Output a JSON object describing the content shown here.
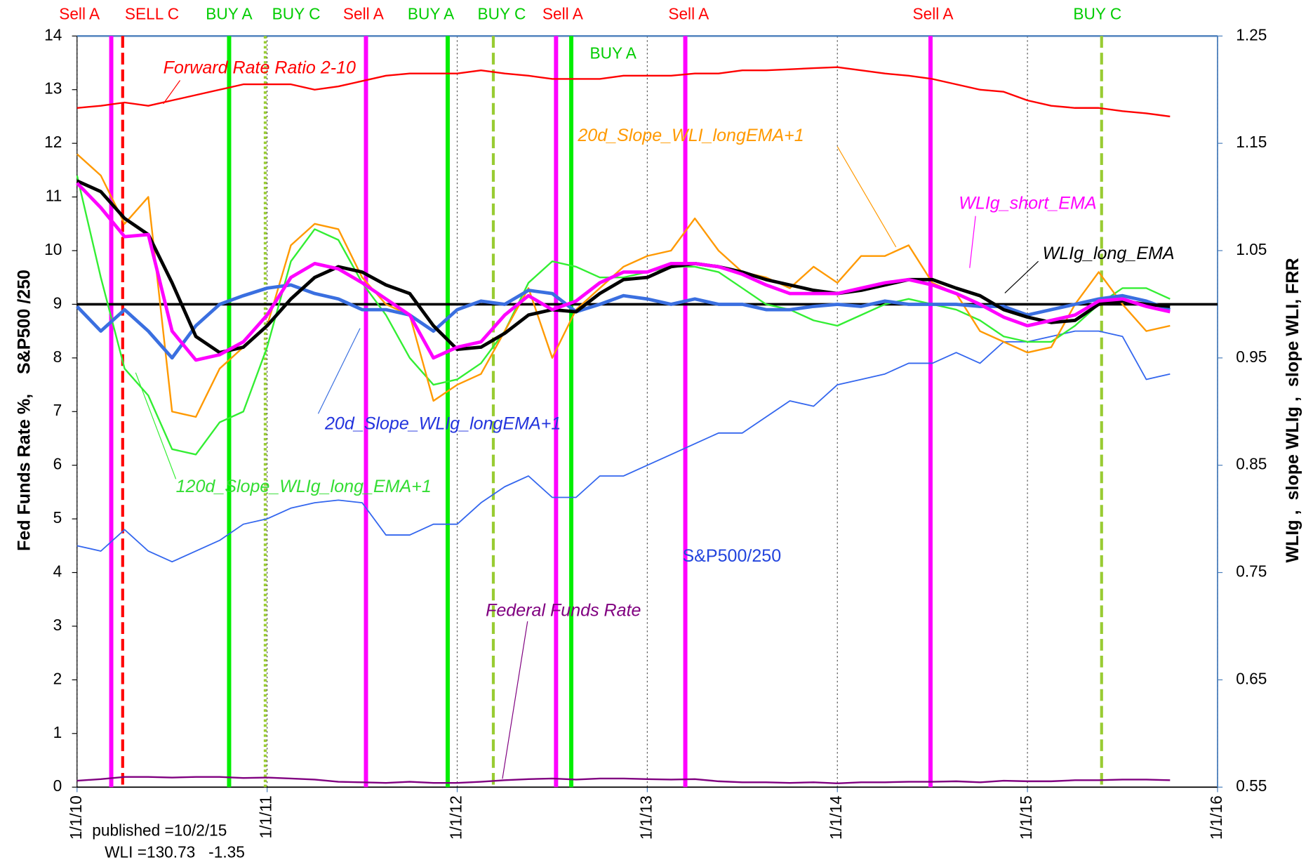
{
  "chart_data": {
    "type": "line",
    "x": [
      2010,
      2010.125,
      2010.25,
      2010.375,
      2010.5,
      2010.625,
      2010.75,
      2010.875,
      2011,
      2011.125,
      2011.25,
      2011.375,
      2011.5,
      2011.625,
      2011.75,
      2011.875,
      2012,
      2012.125,
      2012.25,
      2012.375,
      2012.5,
      2012.625,
      2012.75,
      2012.875,
      2013,
      2013.125,
      2013.25,
      2013.375,
      2013.5,
      2013.625,
      2013.75,
      2013.875,
      2014,
      2014.125,
      2014.25,
      2014.375,
      2014.5,
      2014.625,
      2014.75,
      2014.875,
      2015,
      2015.125,
      2015.25,
      2015.375,
      2015.5,
      2015.625,
      2015.75
    ],
    "xlim": [
      2010,
      2016
    ],
    "xticks": [
      {
        "value": 2010,
        "label": "1/1/10"
      },
      {
        "value": 2011,
        "label": "1/1/11"
      },
      {
        "value": 2012,
        "label": "1/1/12"
      },
      {
        "value": 2013,
        "label": "1/1/13"
      },
      {
        "value": 2014,
        "label": "1/1/14"
      },
      {
        "value": 2015,
        "label": "1/1/15"
      },
      {
        "value": 2016,
        "label": "1/1/16"
      }
    ],
    "ylim": [
      0,
      14
    ],
    "yticks": [
      0,
      1,
      2,
      3,
      4,
      5,
      6,
      7,
      8,
      9,
      10,
      11,
      12,
      13,
      14
    ],
    "y2lim": [
      0.55,
      1.25
    ],
    "y2ticks": [
      0.55,
      0.65,
      0.75,
      0.85,
      0.95,
      1.05,
      1.15,
      1.25
    ],
    "ylabel": "Fed Funds Rate %,    S&P500 /250",
    "y2label": "WLIg ,  slope WLIg ,  slope WLI, FRR",
    "grid": "x",
    "reference_lines": [
      {
        "value": 1,
        "axis": "y2",
        "color": "#000000"
      }
    ],
    "series": [
      {
        "name": "S&P500/250",
        "color": "#3366ee",
        "values": [
          4.5,
          4.4,
          4.8,
          4.4,
          4.2,
          4.4,
          4.6,
          4.9,
          5.0,
          5.2,
          5.3,
          5.35,
          5.3,
          4.7,
          4.7,
          4.9,
          4.9,
          5.3,
          5.6,
          5.8,
          5.4,
          5.4,
          5.8,
          5.8,
          6.0,
          6.2,
          6.4,
          6.6,
          6.6,
          6.9,
          7.2,
          7.1,
          7.5,
          7.6,
          7.7,
          7.9,
          7.9,
          8.1,
          7.9,
          8.3,
          8.3,
          8.4,
          8.5,
          8.5,
          8.4,
          7.6,
          7.7
        ]
      },
      {
        "name": "Federal Funds Rate",
        "color": "#800080",
        "values": [
          0.12,
          0.15,
          0.19,
          0.19,
          0.18,
          0.19,
          0.19,
          0.17,
          0.18,
          0.16,
          0.14,
          0.1,
          0.09,
          0.08,
          0.1,
          0.08,
          0.08,
          0.1,
          0.13,
          0.15,
          0.16,
          0.14,
          0.16,
          0.16,
          0.15,
          0.14,
          0.15,
          0.11,
          0.09,
          0.09,
          0.08,
          0.09,
          0.07,
          0.09,
          0.09,
          0.1,
          0.1,
          0.11,
          0.09,
          0.12,
          0.11,
          0.11,
          0.13,
          0.13,
          0.14,
          0.14,
          0.13
        ]
      },
      {
        "name": "Forward Rate Ratio 2-10",
        "color": "#ff0000",
        "axis": "y2",
        "values": [
          1.183,
          1.185,
          1.188,
          1.185,
          1.19,
          1.195,
          1.2,
          1.205,
          1.205,
          1.205,
          1.2,
          1.203,
          1.208,
          1.213,
          1.215,
          1.215,
          1.215,
          1.218,
          1.215,
          1.213,
          1.21,
          1.21,
          1.21,
          1.213,
          1.213,
          1.213,
          1.215,
          1.215,
          1.218,
          1.218,
          1.219,
          1.22,
          1.221,
          1.218,
          1.215,
          1.213,
          1.21,
          1.205,
          1.2,
          1.198,
          1.19,
          1.185,
          1.183,
          1.183,
          1.18,
          1.178,
          1.175
        ]
      },
      {
        "name": "120d_Slope_WLIg_long_EMA+1",
        "color": "#33ee33",
        "axis": "y2",
        "values": [
          1.12,
          1.025,
          0.94,
          0.915,
          0.865,
          0.86,
          0.89,
          0.9,
          0.96,
          1.04,
          1.07,
          1.06,
          1.02,
          0.99,
          0.95,
          0.925,
          0.93,
          0.945,
          0.975,
          1.02,
          1.04,
          1.035,
          1.025,
          1.025,
          1.03,
          1.035,
          1.035,
          1.03,
          1.015,
          1.0,
          0.995,
          0.985,
          0.98,
          0.99,
          1.0,
          1.005,
          1.0,
          0.995,
          0.985,
          0.97,
          0.965,
          0.965,
          0.98,
          1.0,
          1.015,
          1.015,
          1.005
        ]
      },
      {
        "name": "20d_Slope_WLI_longEMA+1",
        "color": "#ff9900",
        "axis": "y2",
        "values": [
          1.14,
          1.12,
          1.075,
          1.1,
          0.9,
          0.895,
          0.94,
          0.96,
          0.98,
          1.055,
          1.075,
          1.07,
          1.025,
          1.0,
          0.99,
          0.91,
          0.925,
          0.935,
          0.975,
          1.015,
          0.95,
          0.995,
          1.015,
          1.035,
          1.045,
          1.05,
          1.08,
          1.05,
          1.03,
          1.025,
          1.015,
          1.035,
          1.02,
          1.045,
          1.045,
          1.055,
          1.02,
          1.01,
          0.975,
          0.965,
          0.955,
          0.96,
          1.0,
          1.03,
          1.0,
          0.975,
          0.98
        ]
      },
      {
        "name": "20d_Slope_WLIg_longEMA+1",
        "color": "#3a6fe0",
        "axis": "y2",
        "values": [
          0.998,
          0.975,
          0.995,
          0.975,
          0.95,
          0.98,
          1.0,
          1.008,
          1.015,
          1.018,
          1.01,
          1.005,
          0.995,
          0.995,
          0.99,
          0.975,
          0.995,
          1.003,
          1.0,
          1.013,
          1.01,
          0.993,
          1.0,
          1.008,
          1.005,
          1.0,
          1.005,
          1.0,
          1.0,
          0.995,
          0.995,
          0.998,
          1.0,
          0.998,
          1.003,
          1.0,
          1.0,
          1.0,
          0.998,
          0.998,
          0.99,
          0.995,
          1.0,
          1.005,
          1.008,
          1.003,
          0.995
        ]
      },
      {
        "name": "WLIg_long_EMA",
        "color": "#000000",
        "axis": "y2",
        "values": [
          1.115,
          1.105,
          1.08,
          1.065,
          1.02,
          0.97,
          0.955,
          0.96,
          0.98,
          1.005,
          1.025,
          1.035,
          1.03,
          1.018,
          1.01,
          0.98,
          0.958,
          0.96,
          0.973,
          0.99,
          0.995,
          0.993,
          1.01,
          1.023,
          1.025,
          1.035,
          1.038,
          1.035,
          1.03,
          1.023,
          1.018,
          1.013,
          1.01,
          1.013,
          1.018,
          1.023,
          1.023,
          1.015,
          1.008,
          0.995,
          0.988,
          0.983,
          0.985,
          1.0,
          1.003,
          1.0,
          0.998
        ]
      },
      {
        "name": "WLIg_short_EMA",
        "color": "#ff00ff",
        "axis": "y2",
        "values": [
          1.113,
          1.09,
          1.063,
          1.065,
          0.975,
          0.948,
          0.953,
          0.965,
          0.99,
          1.025,
          1.038,
          1.033,
          1.02,
          1.005,
          0.99,
          0.95,
          0.96,
          0.965,
          0.99,
          1.008,
          0.995,
          1.003,
          1.02,
          1.03,
          1.03,
          1.038,
          1.038,
          1.035,
          1.028,
          1.018,
          1.01,
          1.01,
          1.01,
          1.015,
          1.02,
          1.023,
          1.018,
          1.01,
          1.0,
          0.988,
          0.98,
          0.985,
          0.99,
          1.003,
          1.005,
          0.998,
          0.993
        ]
      }
    ],
    "signals": [
      {
        "label": "Sell A",
        "x": 2010.18,
        "color": "#ff00ff",
        "style": "solid",
        "label_color": "#ff0000"
      },
      {
        "label": "SELL C",
        "x": 2010.24,
        "color": "#ff0000",
        "style": "dashed",
        "label_color": "#ff0000"
      },
      {
        "label": "BUY A",
        "x": 2010.8,
        "color": "#00ee00",
        "style": "solid",
        "label_color": "#00cc00"
      },
      {
        "label": "BUY C",
        "x": 2010.99,
        "color": "#99cc33",
        "style": "dotted",
        "label_color": "#00cc00"
      },
      {
        "label": "Sell A",
        "x": 2011.52,
        "color": "#ff00ff",
        "style": "solid",
        "label_color": "#ff0000"
      },
      {
        "label": "BUY A",
        "x": 2011.95,
        "color": "#00ee00",
        "style": "solid",
        "label_color": "#00cc00"
      },
      {
        "label": "BUY C",
        "x": 2012.19,
        "color": "#99cc33",
        "style": "dashed",
        "label_color": "#00cc00"
      },
      {
        "label": "Sell A",
        "x": 2012.52,
        "color": "#ff00ff",
        "style": "solid",
        "label_color": "#ff0000"
      },
      {
        "label": "BUY A",
        "x": 2012.6,
        "color": "#00ee00",
        "style": "solid",
        "label_color": "#00cc00"
      },
      {
        "label": "Sell A",
        "x": 2013.2,
        "color": "#ff00ff",
        "style": "solid",
        "label_color": "#ff0000"
      },
      {
        "label": "Sell A",
        "x": 2014.49,
        "color": "#ff00ff",
        "style": "solid",
        "label_color": "#ff0000"
      },
      {
        "label": "BUY C",
        "x": 2015.39,
        "color": "#99cc33",
        "style": "dashed",
        "label_color": "#00cc00"
      }
    ],
    "notes": [
      "published =10/2/15",
      "WLI =130.73   -1.35"
    ]
  }
}
